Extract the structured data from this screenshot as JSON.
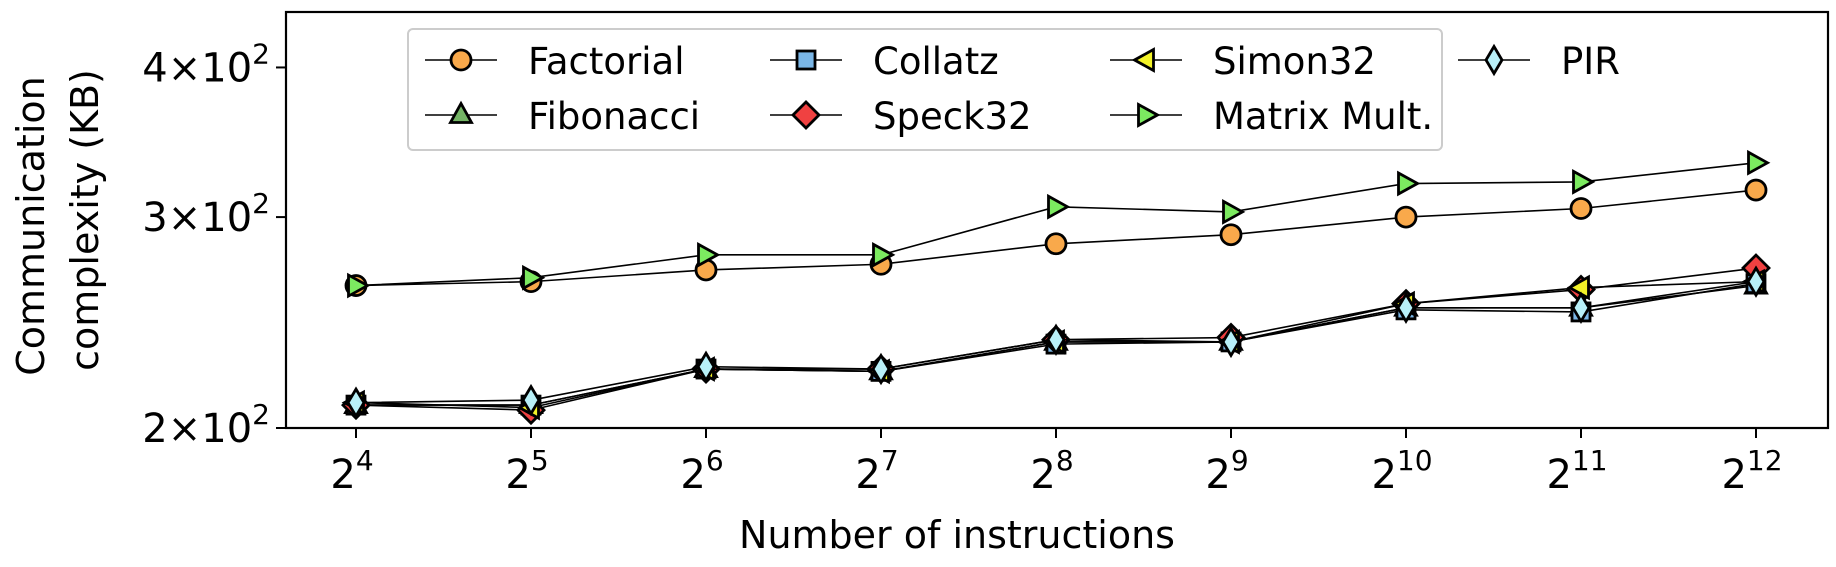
{
  "chart_data": {
    "type": "line",
    "title": "",
    "xlabel": "Number of instructions",
    "ylabel": "Communication complexity (KB)",
    "ylabel_lines": [
      "Communication",
      "complexity (KB)"
    ],
    "x_scale": "log2",
    "y_scale": "log",
    "x": [
      16,
      32,
      64,
      128,
      256,
      512,
      1024,
      2048,
      4096
    ],
    "x_tick_labels": [
      {
        "base": "2",
        "exp": "4"
      },
      {
        "base": "2",
        "exp": "5"
      },
      {
        "base": "2",
        "exp": "6"
      },
      {
        "base": "2",
        "exp": "7"
      },
      {
        "base": "2",
        "exp": "8"
      },
      {
        "base": "2",
        "exp": "9"
      },
      {
        "base": "2",
        "exp": "10"
      },
      {
        "base": "2",
        "exp": "11"
      },
      {
        "base": "2",
        "exp": "12"
      }
    ],
    "y_ticks": [
      {
        "value": 200,
        "coef": "2",
        "base": "10",
        "exp": "2"
      },
      {
        "value": 300,
        "coef": "3",
        "base": "10",
        "exp": "2"
      },
      {
        "value": 400,
        "coef": "4",
        "base": "10",
        "exp": "2"
      }
    ],
    "ylim": [
      200,
      445
    ],
    "grid": false,
    "legend_position": "top-center",
    "series": [
      {
        "name": "Factorial",
        "marker": "circle",
        "color": "#f9a94b",
        "values": [
          263,
          265,
          271,
          274,
          285,
          290,
          300,
          305,
          316
        ]
      },
      {
        "name": "Fibonacci",
        "marker": "triangle-up",
        "color": "#74b465",
        "values": [
          209,
          209,
          224,
          223,
          236,
          236,
          252,
          252,
          263
        ]
      },
      {
        "name": "Collatz",
        "marker": "square",
        "color": "#7ab6e6",
        "values": [
          209,
          209,
          224,
          223,
          235,
          236,
          251,
          250,
          264
        ]
      },
      {
        "name": "Speck32",
        "marker": "diamond",
        "color": "#f04141",
        "values": [
          209,
          207,
          224,
          224,
          237,
          238,
          254,
          261,
          272
        ]
      },
      {
        "name": "Simon32",
        "marker": "triangle-left",
        "color": "#f2f227",
        "values": [
          210,
          208,
          224,
          223,
          236,
          236,
          254,
          262,
          265
        ]
      },
      {
        "name": "Matrix Mult.",
        "marker": "triangle-right",
        "color": "#7cea60",
        "values": [
          263,
          267,
          279,
          279,
          306,
          303,
          320,
          321,
          333
        ]
      },
      {
        "name": "PIR",
        "marker": "thin-diamond",
        "color": "#b8f0f8",
        "values": [
          210,
          211,
          225,
          224,
          237,
          236,
          252,
          252,
          265
        ]
      }
    ]
  }
}
